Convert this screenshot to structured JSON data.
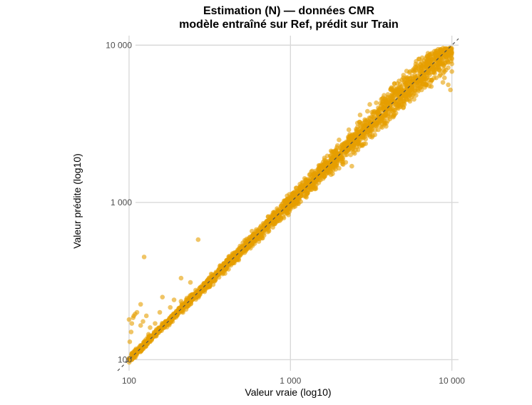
{
  "chart_data": {
    "type": "scatter",
    "title": "Estimation (N) — données CMR",
    "subtitle": "modèle entraîné sur Ref, prédit sur Train",
    "xlabel": "Valeur vraie (log10)",
    "ylabel": "Valeur prédite (log10)",
    "x_scale": "log10",
    "y_scale": "log10",
    "xlim": [
      85,
      11000
    ],
    "ylim": [
      85,
      11500
    ],
    "x_ticks": [
      100,
      1000,
      10000
    ],
    "x_tick_labels": [
      "100",
      "1 000",
      "10 000"
    ],
    "y_ticks": [
      100,
      1000,
      10000
    ],
    "y_tick_labels": [
      "100",
      "1 000",
      "10 000"
    ],
    "grid": true,
    "reference_line": {
      "style": "dashed",
      "slope": 1,
      "intercept": 0,
      "color": "#4d4d4d"
    },
    "point_color": "#E69F00",
    "point_alpha": 0.6,
    "series": [
      {
        "points": [
          [
            100,
            102
          ],
          [
            102,
            104
          ],
          [
            105,
            103
          ],
          [
            108,
            112
          ],
          [
            110,
            110
          ],
          [
            115,
            117
          ],
          [
            120,
            118
          ],
          [
            125,
            128
          ],
          [
            130,
            127
          ],
          [
            140,
            143
          ],
          [
            150,
            147
          ],
          [
            160,
            165
          ],
          [
            170,
            168
          ],
          [
            180,
            184
          ],
          [
            190,
            187
          ],
          [
            200,
            205
          ],
          [
            220,
            216
          ],
          [
            240,
            246
          ],
          [
            260,
            255
          ],
          [
            280,
            288
          ],
          [
            300,
            296
          ],
          [
            330,
            338
          ],
          [
            360,
            352
          ],
          [
            400,
            410
          ],
          [
            450,
            440
          ],
          [
            500,
            512
          ],
          [
            550,
            540
          ],
          [
            600,
            615
          ],
          [
            650,
            640
          ],
          [
            700,
            720
          ],
          [
            750,
            735
          ],
          [
            800,
            820
          ],
          [
            900,
            880
          ],
          [
            1000,
            1020
          ],
          [
            1100,
            1080
          ],
          [
            1200,
            1230
          ],
          [
            1300,
            1270
          ],
          [
            1400,
            1440
          ],
          [
            1500,
            1470
          ],
          [
            1700,
            1730
          ],
          [
            1900,
            1860
          ],
          [
            2100,
            2150
          ],
          [
            2400,
            2350
          ],
          [
            2700,
            2780
          ],
          [
            3000,
            2920
          ],
          [
            3300,
            3400
          ],
          [
            3600,
            3500
          ],
          [
            4000,
            4100
          ],
          [
            4500,
            4350
          ],
          [
            5000,
            5150
          ],
          [
            5500,
            5300
          ],
          [
            6000,
            6200
          ],
          [
            6500,
            6300
          ],
          [
            7000,
            7200
          ],
          [
            7500,
            7300
          ],
          [
            8000,
            8100
          ],
          [
            8500,
            8300
          ],
          [
            9000,
            8800
          ],
          [
            9500,
            8600
          ],
          [
            10000,
            8200
          ],
          [
            101,
            130
          ],
          [
            103,
            150
          ],
          [
            104,
            170
          ],
          [
            106,
            185
          ],
          [
            107,
            190
          ],
          [
            100,
            180
          ],
          [
            109,
            195
          ],
          [
            112,
            200
          ],
          [
            118,
            165
          ],
          [
            122,
            175
          ],
          [
            128,
            190
          ],
          [
            135,
            160
          ],
          [
            124,
            450
          ],
          [
            118,
            225
          ],
          [
            161,
            250
          ],
          [
            155,
            200
          ],
          [
            268,
            580
          ],
          [
            210,
            330
          ],
          [
            240,
            310
          ],
          [
            180,
            215
          ],
          [
            145,
            170
          ],
          [
            132,
            145
          ],
          [
            190,
            240
          ],
          [
            210,
            235
          ],
          [
            2000,
            1650
          ],
          [
            2200,
            1800
          ],
          [
            2500,
            2050
          ],
          [
            2800,
            2300
          ],
          [
            3200,
            2600
          ],
          [
            3500,
            2900
          ],
          [
            2000,
            2500
          ],
          [
            2300,
            2900
          ],
          [
            2600,
            3200
          ],
          [
            3000,
            3800
          ],
          [
            3400,
            4300
          ],
          [
            3800,
            4800
          ],
          [
            4200,
            5300
          ],
          [
            4600,
            5700
          ],
          [
            5000,
            6200
          ],
          [
            5500,
            6800
          ],
          [
            6000,
            7200
          ],
          [
            6500,
            7800
          ],
          [
            7000,
            8500
          ],
          [
            7500,
            8900
          ],
          [
            8000,
            9200
          ],
          [
            8500,
            9400
          ],
          [
            9000,
            9500
          ],
          [
            9500,
            9300
          ],
          [
            10000,
            9000
          ],
          [
            4000,
            3300
          ],
          [
            4500,
            3700
          ],
          [
            5000,
            4000
          ],
          [
            5500,
            4400
          ],
          [
            6000,
            4800
          ],
          [
            6500,
            5200
          ],
          [
            7000,
            5600
          ],
          [
            7500,
            6000
          ],
          [
            8000,
            6200
          ],
          [
            8500,
            6500
          ],
          [
            9000,
            6800
          ],
          [
            9500,
            7200
          ],
          [
            10000,
            7600
          ],
          [
            9800,
            5200
          ],
          [
            9500,
            5600
          ],
          [
            8800,
            5800
          ],
          [
            9000,
            6200
          ],
          [
            10000,
            6800
          ],
          [
            2400,
            1700
          ],
          [
            2700,
            3600
          ],
          [
            3100,
            4200
          ],
          [
            3700,
            3000
          ],
          [
            4400,
            5700
          ],
          [
            5300,
            4500
          ],
          [
            6100,
            7400
          ],
          [
            6800,
            5400
          ],
          [
            7200,
            8200
          ],
          [
            7800,
            6900
          ],
          [
            8300,
            7600
          ],
          [
            8700,
            8000
          ],
          [
            9200,
            8400
          ],
          [
            9700,
            9100
          ],
          [
            9900,
            7900
          ],
          [
            4100,
            3500
          ],
          [
            3500,
            4000
          ],
          [
            2900,
            3100
          ],
          [
            5700,
            5000
          ],
          [
            6300,
            6900
          ]
        ]
      }
    ]
  }
}
